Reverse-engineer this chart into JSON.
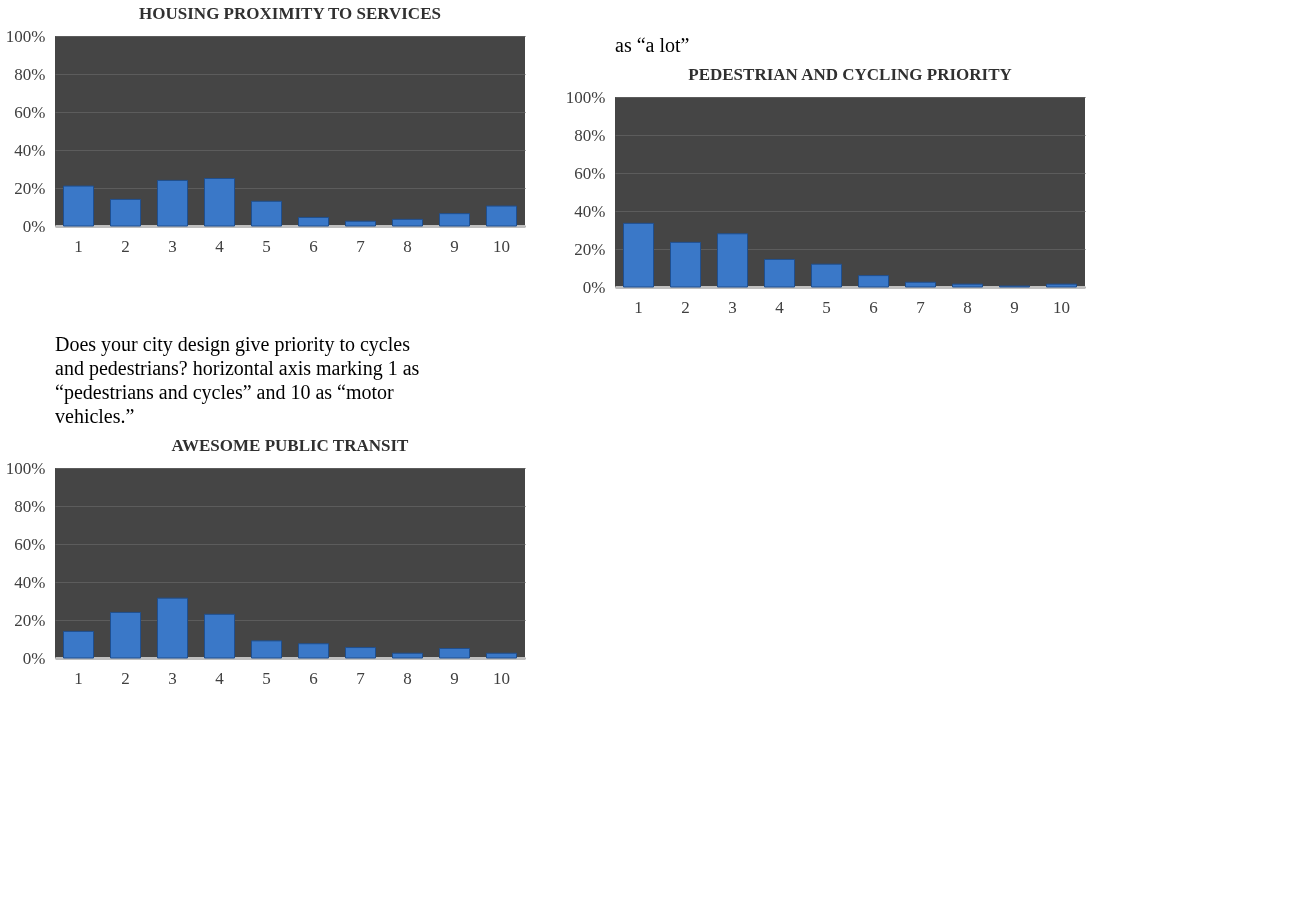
{
  "chart_data": [
    {
      "type": "bar",
      "title": "HOUSING PROXIMITY TO SERVICES",
      "categories": [
        "1",
        "2",
        "3",
        "4",
        "5",
        "6",
        "7",
        "8",
        "9",
        "10"
      ],
      "values": [
        21,
        14,
        24,
        25,
        13,
        4.5,
        2.5,
        3.5,
        6.5,
        10.5
      ],
      "color": "#3a78c8",
      "ylim": [
        0,
        100
      ],
      "yticks": [
        {
          "value": 0,
          "label": "0%"
        },
        {
          "value": 20,
          "label": "20%"
        },
        {
          "value": 40,
          "label": "40%"
        },
        {
          "value": 60,
          "label": "60%"
        },
        {
          "value": 80,
          "label": "80%"
        },
        {
          "value": 100,
          "label": "100%"
        }
      ],
      "grid": "y"
    },
    {
      "type": "bar",
      "title": "PEDESTRIAN AND CYCLING PRIORITY",
      "annotations": [
        "as “a lot”"
      ],
      "categories": [
        "1",
        "2",
        "3",
        "4",
        "5",
        "6",
        "7",
        "8",
        "9",
        "10"
      ],
      "values": [
        33.5,
        23.5,
        28,
        14.5,
        12,
        6,
        2.5,
        1.5,
        0.5,
        1.5
      ],
      "color": "#3a78c8",
      "ylim": [
        0,
        100
      ],
      "yticks": [
        {
          "value": 0,
          "label": "0%"
        },
        {
          "value": 20,
          "label": "20%"
        },
        {
          "value": 40,
          "label": "40%"
        },
        {
          "value": 60,
          "label": "60%"
        },
        {
          "value": 80,
          "label": "80%"
        },
        {
          "value": 100,
          "label": "100%"
        }
      ],
      "grid": "y"
    },
    {
      "type": "bar",
      "title": "AWESOME PUBLIC TRANSIT",
      "annotations": [
        "Does your city design give priority to cycles and pedestrians? horizontal axis marking 1 as “pedestrians and cycles” and 10 as “motor vehicles.”"
      ],
      "categories": [
        "1",
        "2",
        "3",
        "4",
        "5",
        "6",
        "7",
        "8",
        "9",
        "10"
      ],
      "values": [
        14,
        24,
        31.5,
        23,
        9,
        7.5,
        5.5,
        2.5,
        5,
        2.5
      ],
      "color": "#3a78c8",
      "ylim": [
        0,
        100
      ],
      "yticks": [
        {
          "value": 0,
          "label": "0%"
        },
        {
          "value": 20,
          "label": "20%"
        },
        {
          "value": 40,
          "label": "40%"
        },
        {
          "value": 60,
          "label": "60%"
        },
        {
          "value": 80,
          "label": "80%"
        },
        {
          "value": 100,
          "label": "100%"
        }
      ],
      "grid": "y"
    }
  ]
}
